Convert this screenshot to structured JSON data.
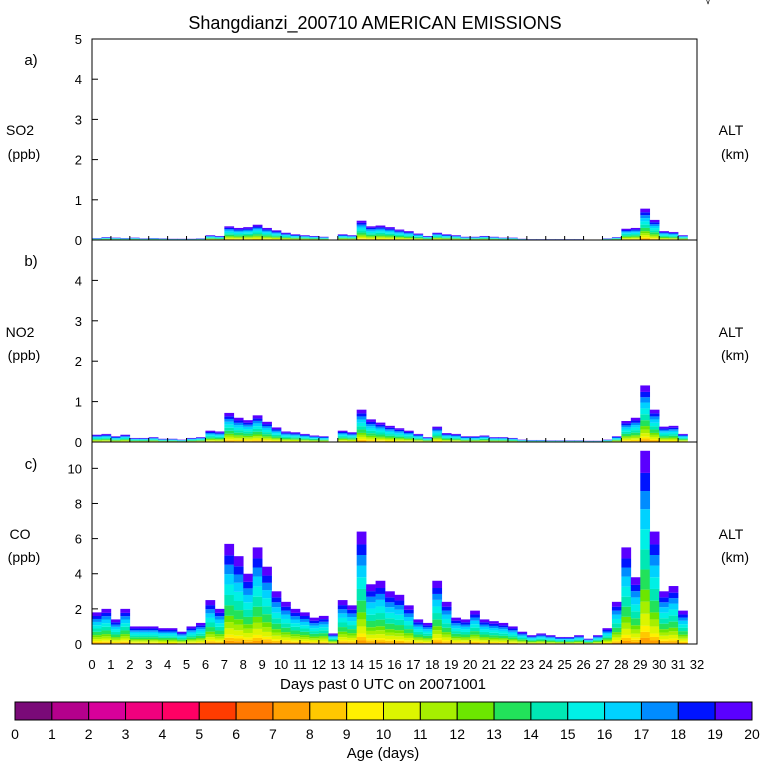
{
  "title": "Shangdianzi_200710 AMERICAN EMISSIONS",
  "corner_mark": "√",
  "xlabel": "Days past 0 UTC on 20071001",
  "colorbar": {
    "label": "Age (days)",
    "ticks": [
      "0",
      "1",
      "2",
      "3",
      "4",
      "5",
      "6",
      "7",
      "8",
      "9",
      "10",
      "11",
      "12",
      "13",
      "14",
      "15",
      "16",
      "17",
      "18",
      "19",
      "20"
    ],
    "colors": [
      "#7a0a78",
      "#b4008c",
      "#d8009a",
      "#f0007e",
      "#ff0064",
      "#ff3c00",
      "#ff7800",
      "#ffa000",
      "#ffc800",
      "#fff000",
      "#dcf500",
      "#a6ef00",
      "#6ce600",
      "#22e25a",
      "#00e8b4",
      "#00f0e6",
      "#00d2ff",
      "#008cff",
      "#0014ff",
      "#5a00ff"
    ]
  },
  "chart_data": [
    {
      "type": "area",
      "panel_tag": "a)",
      "ylabel": "SO2",
      "yunit": "(ppb)",
      "right_label": "ALT",
      "right_unit": "(km)",
      "ylim": [
        0,
        5
      ],
      "yticks": [
        "0",
        "1",
        "2",
        "3",
        "4",
        "5"
      ],
      "xlim": [
        0,
        32
      ],
      "xticks": [
        "0",
        "1",
        "2",
        "3",
        "4",
        "5",
        "6",
        "7",
        "8",
        "9",
        "10",
        "11",
        "12",
        "13",
        "14",
        "15",
        "16",
        "17",
        "18",
        "19",
        "20",
        "21",
        "22",
        "23",
        "24",
        "25",
        "26",
        "27",
        "28",
        "29",
        "30",
        "31",
        "32"
      ],
      "x": [
        0,
        0.5,
        1,
        1.5,
        2,
        2.5,
        3,
        3.5,
        4,
        4.5,
        5,
        5.5,
        6,
        6.5,
        7,
        7.5,
        8,
        8.5,
        9,
        9.5,
        10,
        10.5,
        11,
        11.5,
        12,
        12.5,
        13,
        13.5,
        14,
        14.5,
        15,
        15.5,
        16,
        16.5,
        17,
        17.5,
        18,
        18.5,
        19,
        19.5,
        20,
        20.5,
        21,
        21.5,
        22,
        22.5,
        23,
        23.5,
        24,
        24.5,
        25,
        25.5,
        26,
        26.5,
        27,
        27.5,
        28,
        28.5,
        29,
        29.5,
        30,
        30.5,
        31
      ],
      "values": [
        0.05,
        0.07,
        0.06,
        0.05,
        0.06,
        0.04,
        0.05,
        0.04,
        0.03,
        0.03,
        0.03,
        0.04,
        0.12,
        0.1,
        0.34,
        0.3,
        0.32,
        0.38,
        0.3,
        0.24,
        0.18,
        0.14,
        0.12,
        0.1,
        0.08,
        0,
        0.14,
        0.12,
        0.48,
        0.34,
        0.36,
        0.32,
        0.26,
        0.22,
        0.16,
        0.1,
        0.18,
        0.14,
        0.12,
        0.08,
        0.08,
        0.1,
        0.08,
        0.06,
        0.06,
        0.03,
        0.02,
        0.02,
        0.02,
        0.02,
        0.02,
        0.02,
        0.01,
        0.01,
        0.04,
        0.07,
        0.28,
        0.3,
        0.78,
        0.5,
        0.22,
        0.2,
        0.12
      ]
    },
    {
      "type": "area",
      "panel_tag": "b)",
      "ylabel": "NO2",
      "yunit": "(ppb)",
      "right_label": "ALT",
      "right_unit": "(km)",
      "ylim": [
        0,
        5
      ],
      "yticks": [
        "0",
        "1",
        "2",
        "3",
        "4"
      ],
      "xlim": [
        0,
        32
      ],
      "x": [
        0,
        0.5,
        1,
        1.5,
        2,
        2.5,
        3,
        3.5,
        4,
        4.5,
        5,
        5.5,
        6,
        6.5,
        7,
        7.5,
        8,
        8.5,
        9,
        9.5,
        10,
        10.5,
        11,
        11.5,
        12,
        12.5,
        13,
        13.5,
        14,
        14.5,
        15,
        15.5,
        16,
        16.5,
        17,
        17.5,
        18,
        18.5,
        19,
        19.5,
        20,
        20.5,
        21,
        21.5,
        22,
        22.5,
        23,
        23.5,
        24,
        24.5,
        25,
        25.5,
        26,
        26.5,
        27,
        27.5,
        28,
        28.5,
        29,
        29.5,
        30,
        30.5,
        31
      ],
      "values": [
        0.18,
        0.2,
        0.14,
        0.18,
        0.1,
        0.1,
        0.12,
        0.08,
        0.08,
        0.06,
        0.1,
        0.12,
        0.28,
        0.26,
        0.72,
        0.6,
        0.54,
        0.66,
        0.5,
        0.36,
        0.26,
        0.24,
        0.2,
        0.16,
        0.14,
        0,
        0.28,
        0.24,
        0.8,
        0.56,
        0.48,
        0.4,
        0.34,
        0.28,
        0.2,
        0.12,
        0.38,
        0.22,
        0.2,
        0.14,
        0.14,
        0.16,
        0.12,
        0.12,
        0.1,
        0.06,
        0.05,
        0.05,
        0.04,
        0.04,
        0.04,
        0.04,
        0.03,
        0.03,
        0.06,
        0.14,
        0.52,
        0.6,
        1.4,
        0.8,
        0.38,
        0.4,
        0.2
      ]
    },
    {
      "type": "area",
      "panel_tag": "c)",
      "ylabel": "CO",
      "yunit": "(ppb)",
      "right_label": "ALT",
      "right_unit": "(km)",
      "ylim": [
        0,
        11.5
      ],
      "yticks": [
        "0",
        "2",
        "4",
        "6",
        "8",
        "10"
      ],
      "xlim": [
        0,
        32
      ],
      "x": [
        0,
        0.5,
        1,
        1.5,
        2,
        2.5,
        3,
        3.5,
        4,
        4.5,
        5,
        5.5,
        6,
        6.5,
        7,
        7.5,
        8,
        8.5,
        9,
        9.5,
        10,
        10.5,
        11,
        11.5,
        12,
        12.5,
        13,
        13.5,
        14,
        14.5,
        15,
        15.5,
        16,
        16.5,
        17,
        17.5,
        18,
        18.5,
        19,
        19.5,
        20,
        20.5,
        21,
        21.5,
        22,
        22.5,
        23,
        23.5,
        24,
        24.5,
        25,
        25.5,
        26,
        26.5,
        27,
        27.5,
        28,
        28.5,
        29,
        29.5,
        30,
        30.5,
        31
      ],
      "values": [
        1.8,
        2.0,
        1.4,
        2.0,
        1.0,
        1.0,
        1.0,
        0.9,
        0.9,
        0.7,
        1.0,
        1.2,
        2.5,
        2.0,
        5.7,
        5.0,
        4.0,
        5.5,
        4.4,
        3.0,
        2.4,
        2.0,
        1.8,
        1.5,
        1.6,
        0.6,
        2.5,
        2.2,
        6.4,
        3.4,
        3.6,
        3.0,
        2.8,
        2.2,
        1.4,
        1.2,
        3.6,
        2.4,
        1.5,
        1.4,
        1.9,
        1.4,
        1.3,
        1.2,
        1.0,
        0.7,
        0.5,
        0.6,
        0.5,
        0.4,
        0.4,
        0.5,
        0.3,
        0.5,
        0.9,
        2.4,
        5.5,
        3.8,
        11.0,
        6.4,
        3.0,
        3.3,
        1.9
      ]
    }
  ]
}
